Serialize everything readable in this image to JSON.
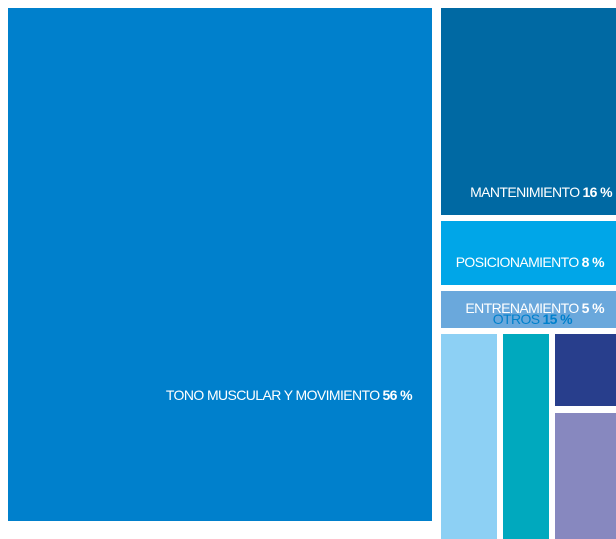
{
  "chart_data": {
    "type": "treemap",
    "categories": [
      "TONO MUSCULAR Y MOVIMIENTO",
      "MANTENIMIENTO",
      "POSICIONAMIENTO",
      "ENTRENAMIENTO",
      "OTROS"
    ],
    "values": [
      56,
      16,
      8,
      5,
      15
    ],
    "value_labels": [
      "56 %",
      "16 %",
      "8 %",
      "5 %",
      "15 %"
    ],
    "colors": [
      "#0080cc",
      "#0069a3",
      "#00a6e8",
      "#6aa8dc",
      "#ffffff"
    ]
  }
}
